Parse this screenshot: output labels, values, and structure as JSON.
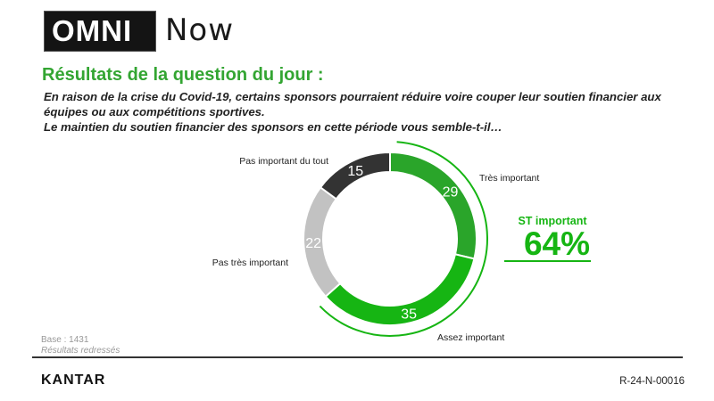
{
  "header": {
    "logo_text": "OMNI",
    "logo_suffix": "Now"
  },
  "title": "Résultats de la question du jour :",
  "question": {
    "line1": "En raison de la crise du Covid-19, certains sponsors pourraient réduire voire couper leur soutien financier aux",
    "line2": "équipes ou aux compétitions sportives.",
    "line3": "Le maintien du soutien financier des sponsors en cette période vous semble-t-il…"
  },
  "colors": {
    "title_green": "#33a532",
    "bright_green": "#16b513",
    "medium_green": "#2aa52a",
    "light_gray": "#c2c2c2",
    "dark_gray": "#333333"
  },
  "chart_data": {
    "type": "pie",
    "donut": true,
    "categories": [
      "Très important",
      "Assez important",
      "Pas très important",
      "Pas important du tout"
    ],
    "values": [
      29,
      35,
      22,
      15
    ],
    "colors": [
      "#2aa52a",
      "#16b513",
      "#c2c2c2",
      "#333333"
    ],
    "legend": "direct-labels",
    "summary": {
      "label": "ST important",
      "value": "64%"
    }
  },
  "footer": {
    "base": "Base : 1431",
    "note": "Résultats redressés",
    "brand": "KANTAR",
    "ref": "R-24-N-00016"
  }
}
